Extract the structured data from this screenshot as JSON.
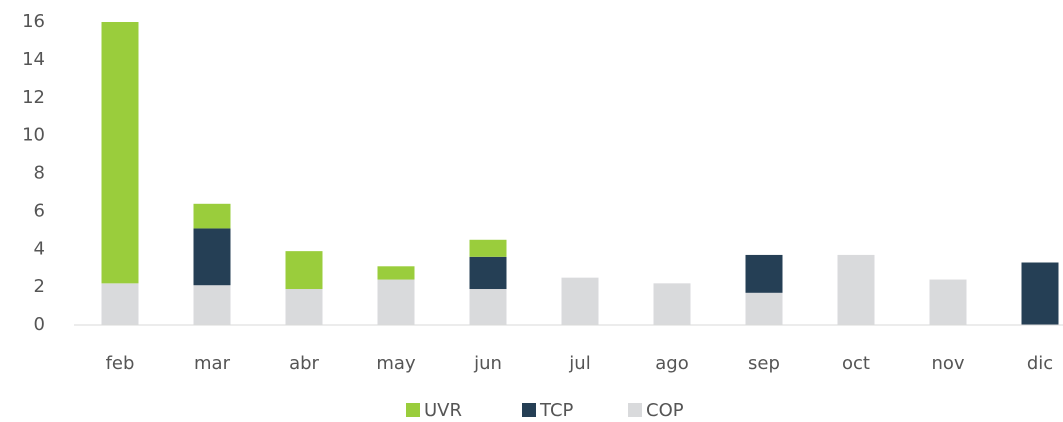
{
  "chart_data": {
    "type": "bar",
    "stacked": true,
    "categories": [
      "feb",
      "mar",
      "abr",
      "may",
      "jun",
      "jul",
      "ago",
      "sep",
      "oct",
      "nov",
      "dic"
    ],
    "series": [
      {
        "name": "UVR",
        "color": "#9acd3c",
        "values": [
          13.8,
          1.3,
          2.0,
          0.7,
          0.9,
          0,
          0,
          0,
          0,
          0,
          0
        ]
      },
      {
        "name": "TCP",
        "color": "#253f55",
        "values": [
          0,
          3.0,
          0,
          0,
          1.7,
          0,
          0,
          2.0,
          0,
          0,
          3.3
        ]
      },
      {
        "name": "COP",
        "color": "#d9dadc",
        "values": [
          2.2,
          2.1,
          1.9,
          2.4,
          1.9,
          2.5,
          2.2,
          1.7,
          3.7,
          2.4,
          0
        ]
      }
    ],
    "ylim": [
      0,
      16
    ],
    "yticks": [
      0,
      2,
      4,
      6,
      8,
      10,
      12,
      14,
      16
    ],
    "grid": false,
    "legend": "bottom"
  }
}
